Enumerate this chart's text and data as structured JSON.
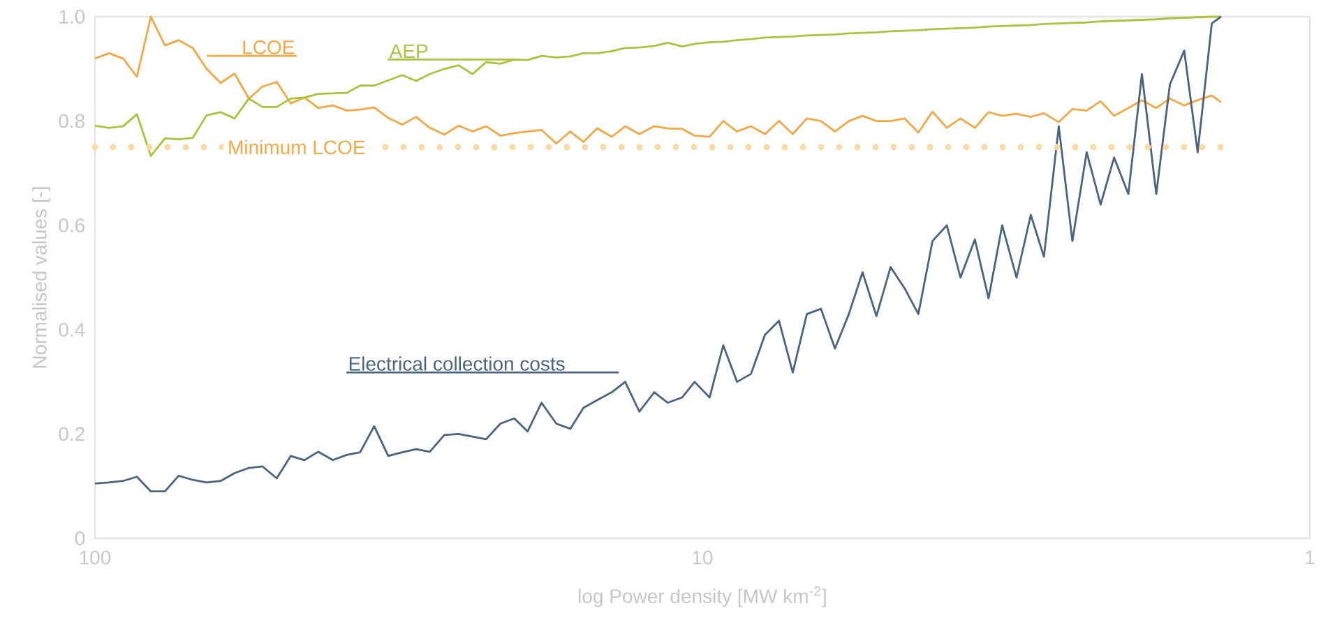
{
  "chart_data": {
    "type": "line",
    "xlabel": "log Power density [MW km$^{-2}$]",
    "ylabel": "Normalised values [-]",
    "log": "x",
    "xlim": [
      100,
      1
    ],
    "ylim": [
      0,
      1
    ],
    "xticks": [
      100,
      10,
      1
    ],
    "yticks": [
      0,
      0.2,
      0.4,
      0.6,
      0.8,
      {
        "value": 1,
        "label": "1.0"
      }
    ],
    "x": [
      100,
      94.8,
      89.9,
      85.3,
      80.9,
      76.7,
      72.8,
      69.0,
      65.5,
      62.1,
      58.9,
      55.8,
      53.0,
      50.2,
      47.6,
      45.2,
      42.9,
      40.6,
      38.5,
      36.6,
      34.7,
      32.9,
      31.2,
      29.6,
      28.1,
      26.6,
      25.2,
      23.9,
      22.7,
      21.5,
      20.4,
      19.4,
      18.4,
      17.4,
      16.5,
      15.7,
      14.9,
      14.1,
      13.4,
      12.7,
      12.0,
      11.4,
      10.8,
      10.3,
      9.73,
      9.24,
      8.77,
      8.32,
      7.89,
      7.48,
      7.1,
      6.73,
      6.38,
      6.05,
      5.74,
      5.45,
      5.17,
      4.9,
      4.65,
      4.41,
      4.18,
      3.96,
      3.76,
      3.56,
      3.38,
      3.21,
      3.04,
      2.88,
      2.74,
      2.59,
      2.46,
      2.33,
      2.21,
      2.1,
      1.99,
      1.89,
      1.79,
      1.7,
      1.61,
      1.53,
      1.45,
      1.4
    ],
    "series": [
      {
        "name": "LCOE",
        "color": "#f5a742",
        "values": [
          0.92,
          0.93,
          0.92,
          0.885,
          1.0,
          0.945,
          0.955,
          0.94,
          0.9,
          0.873,
          0.891,
          0.843,
          0.866,
          0.875,
          0.834,
          0.845,
          0.825,
          0.83,
          0.82,
          0.822,
          0.826,
          0.806,
          0.793,
          0.808,
          0.787,
          0.774,
          0.791,
          0.78,
          0.79,
          0.772,
          0.777,
          0.78,
          0.783,
          0.757,
          0.78,
          0.76,
          0.786,
          0.77,
          0.79,
          0.775,
          0.79,
          0.786,
          0.785,
          0.772,
          0.77,
          0.8,
          0.78,
          0.79,
          0.775,
          0.8,
          0.775,
          0.805,
          0.8,
          0.78,
          0.8,
          0.81,
          0.8,
          0.8,
          0.805,
          0.778,
          0.818,
          0.787,
          0.805,
          0.787,
          0.817,
          0.81,
          0.814,
          0.808,
          0.815,
          0.798,
          0.823,
          0.82,
          0.838,
          0.81,
          0.825,
          0.84,
          0.825,
          0.843,
          0.83,
          0.84,
          0.849,
          0.836
        ]
      },
      {
        "name": "AEP",
        "color": "#a8c43a",
        "values": [
          0.791,
          0.787,
          0.79,
          0.813,
          0.733,
          0.767,
          0.765,
          0.768,
          0.811,
          0.817,
          0.805,
          0.843,
          0.827,
          0.827,
          0.843,
          0.845,
          0.852,
          0.853,
          0.854,
          0.868,
          0.868,
          0.878,
          0.888,
          0.877,
          0.89,
          0.9,
          0.907,
          0.89,
          0.913,
          0.91,
          0.918,
          0.917,
          0.925,
          0.922,
          0.924,
          0.93,
          0.93,
          0.934,
          0.94,
          0.941,
          0.944,
          0.95,
          0.943,
          0.948,
          0.951,
          0.952,
          0.955,
          0.957,
          0.96,
          0.961,
          0.962,
          0.964,
          0.965,
          0.966,
          0.968,
          0.969,
          0.97,
          0.972,
          0.973,
          0.974,
          0.976,
          0.977,
          0.978,
          0.979,
          0.981,
          0.982,
          0.983,
          0.984,
          0.986,
          0.987,
          0.988,
          0.989,
          0.991,
          0.992,
          0.993,
          0.994,
          0.995,
          0.997,
          0.998,
          0.999,
          1.0,
          1.0
        ]
      },
      {
        "name": "Electrical collection costs",
        "color": "#4a6480",
        "values": [
          0.105,
          0.107,
          0.11,
          0.118,
          0.09,
          0.09,
          0.12,
          0.112,
          0.107,
          0.11,
          0.125,
          0.135,
          0.138,
          0.115,
          0.158,
          0.15,
          0.166,
          0.15,
          0.16,
          0.165,
          0.215,
          0.158,
          0.165,
          0.171,
          0.166,
          0.198,
          0.2,
          0.195,
          0.19,
          0.22,
          0.23,
          0.205,
          0.26,
          0.22,
          0.21,
          0.25,
          0.265,
          0.28,
          0.3,
          0.243,
          0.28,
          0.26,
          0.27,
          0.3,
          0.27,
          0.37,
          0.3,
          0.315,
          0.39,
          0.417,
          0.318,
          0.43,
          0.44,
          0.364,
          0.43,
          0.51,
          0.426,
          0.52,
          0.48,
          0.43,
          0.57,
          0.6,
          0.5,
          0.573,
          0.46,
          0.6,
          0.5,
          0.62,
          0.54,
          0.79,
          0.57,
          0.74,
          0.64,
          0.73,
          0.66,
          0.89,
          0.66,
          0.87,
          0.935,
          0.74,
          0.987,
          1.0
        ]
      }
    ],
    "ref_lines": [
      {
        "axis": "y",
        "value": 0.75,
        "label": "Minimum LCOE",
        "color": "#fcd9a4",
        "line_style": "dotted"
      }
    ]
  }
}
